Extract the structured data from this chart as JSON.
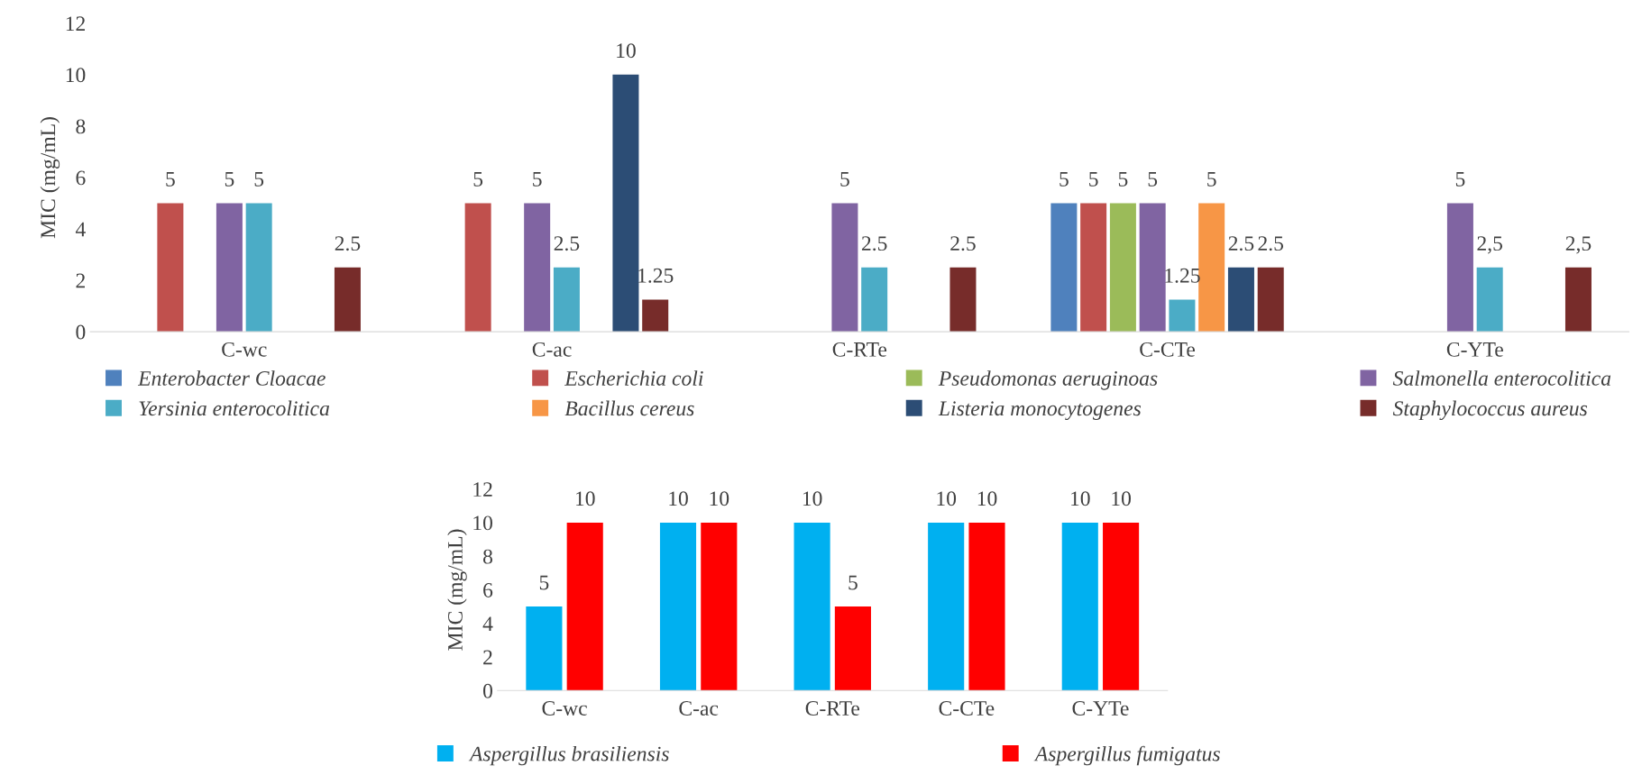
{
  "chart_data": [
    {
      "type": "bar",
      "ylabel": "MIC (mg/mL)",
      "categories": [
        "C-wc",
        "C-ac",
        "C-RTe",
        "C-CTe",
        "C-YTe"
      ],
      "ylim": [
        0,
        12
      ],
      "yticks": [
        0,
        2,
        4,
        6,
        8,
        10,
        12
      ],
      "grid": false,
      "legend": "bottom",
      "series": [
        {
          "name": "Enterobacter Cloacae",
          "color": "#4f81bd",
          "values": [
            null,
            null,
            null,
            5,
            null
          ],
          "value_labels": [
            null,
            null,
            null,
            "5",
            null
          ]
        },
        {
          "name": "Escherichia coli",
          "color": "#c0504d",
          "values": [
            5,
            5,
            null,
            5,
            null
          ],
          "value_labels": [
            "5",
            "5",
            null,
            "5",
            null
          ]
        },
        {
          "name": "Pseudomonas aeruginoas",
          "color": "#9bbb59",
          "values": [
            null,
            null,
            null,
            5,
            null
          ],
          "value_labels": [
            null,
            null,
            null,
            "5",
            null
          ]
        },
        {
          "name": "Salmonella enterocolitica",
          "color": "#8064a2",
          "values": [
            5,
            5,
            5,
            5,
            5
          ],
          "value_labels": [
            "5",
            "5",
            "5",
            "5",
            "5"
          ]
        },
        {
          "name": "Yersinia enterocolitica",
          "color": "#4bacc6",
          "values": [
            5,
            2.5,
            2.5,
            1.25,
            2.5
          ],
          "value_labels": [
            "5",
            "2.5",
            "2.5",
            "1.25",
            "2,5"
          ]
        },
        {
          "name": "Bacillus cereus",
          "color": "#f79646",
          "values": [
            null,
            null,
            null,
            5,
            null
          ],
          "value_labels": [
            null,
            null,
            null,
            "5",
            null
          ]
        },
        {
          "name": "Listeria monocytogenes",
          "color": "#2c4d75",
          "values": [
            null,
            10,
            null,
            2.5,
            null
          ],
          "value_labels": [
            null,
            "10",
            null,
            "2.5",
            null
          ]
        },
        {
          "name": "Staphylococcus aureus",
          "color": "#772c2a",
          "values": [
            2.5,
            1.25,
            2.5,
            2.5,
            2.5
          ],
          "value_labels": [
            "2.5",
            "1.25",
            "2.5",
            "2.5",
            "2,5"
          ]
        }
      ]
    },
    {
      "type": "bar",
      "ylabel": "MIC (mg/mL)",
      "categories": [
        "C-wc",
        "C-ac",
        "C-RTe",
        "C-CTe",
        "C-YTe"
      ],
      "ylim": [
        0,
        12
      ],
      "yticks": [
        0,
        2,
        4,
        6,
        8,
        10,
        12
      ],
      "grid": false,
      "legend": "bottom",
      "series": [
        {
          "name": "Aspergillus brasiliensis",
          "color": "#00b0f0",
          "values": [
            5,
            10,
            10,
            10,
            10
          ],
          "value_labels": [
            "5",
            "10",
            "10",
            "10",
            "10"
          ]
        },
        {
          "name": "Aspergillus fumigatus",
          "color": "#ff0000",
          "values": [
            10,
            10,
            5,
            10,
            10
          ],
          "value_labels": [
            "10",
            "10",
            "5",
            "10",
            "10"
          ]
        }
      ]
    }
  ]
}
